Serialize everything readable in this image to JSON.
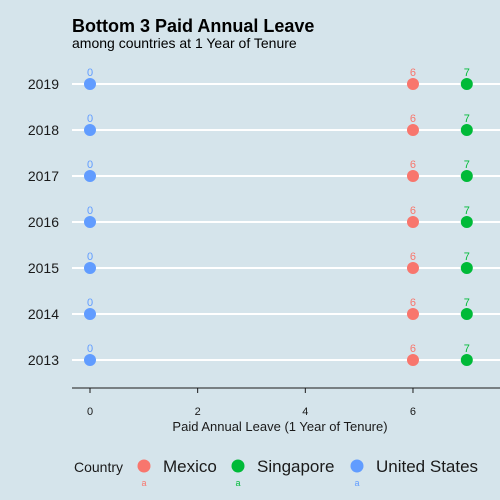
{
  "chart_data": {
    "type": "scatter",
    "title": "Bottom 3 Paid Annual Leave",
    "subtitle": "among countries at 1 Year of Tenure",
    "xlabel": "Paid Annual Leave (1 Year of Tenure)",
    "ylabel": "",
    "categories": [
      "2013",
      "2014",
      "2015",
      "2016",
      "2017",
      "2018",
      "2019"
    ],
    "xlim": [
      -0.3,
      7.6
    ],
    "xticks": [
      0,
      2,
      4,
      6
    ],
    "grid": "horizontal",
    "legend_position": "bottom",
    "legend_title": "Country",
    "legend_key_label": "a",
    "series": [
      {
        "name": "Mexico",
        "color": "#f8766d",
        "values": [
          6,
          6,
          6,
          6,
          6,
          6,
          6
        ]
      },
      {
        "name": "Singapore",
        "color": "#00ba38",
        "values": [
          7,
          7,
          7,
          7,
          7,
          7,
          7
        ]
      },
      {
        "name": "United States",
        "color": "#619cff",
        "values": [
          0,
          0,
          0,
          0,
          0,
          0,
          0
        ]
      }
    ]
  }
}
